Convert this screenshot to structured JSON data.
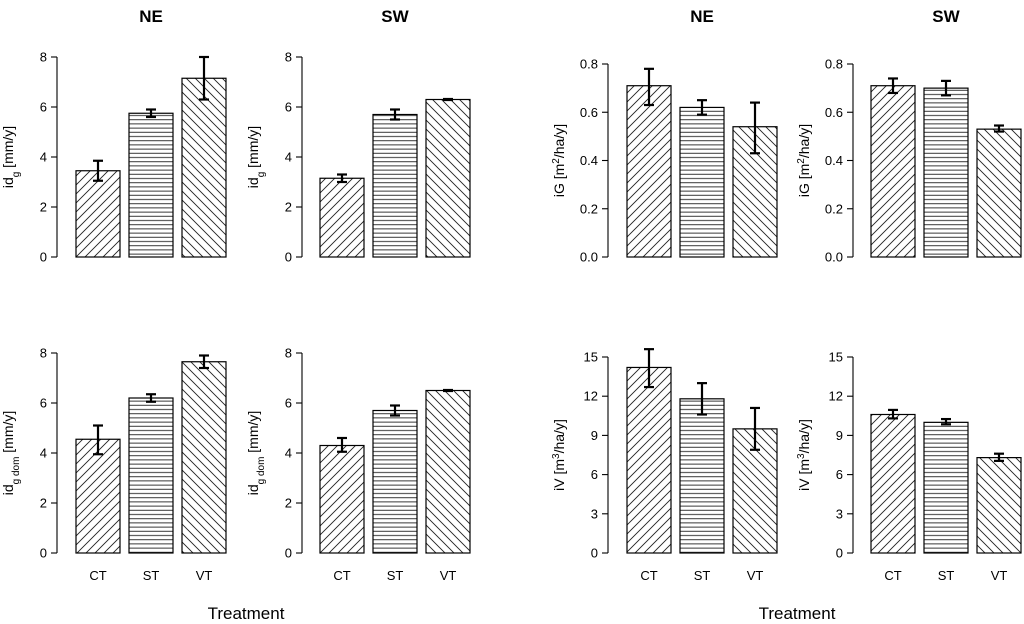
{
  "chart_data": [
    {
      "type": "bar",
      "title": "NE",
      "ylabel_parts": [
        [
          "id",
          ""
        ],
        [
          "g",
          "sub"
        ],
        [
          " [mm/y]",
          ""
        ]
      ],
      "categories": [
        "CT",
        "ST",
        "VT"
      ],
      "hatches": [
        "diag-up",
        "horizontal",
        "diag-down"
      ],
      "values": [
        3.45,
        5.75,
        7.15
      ],
      "errors": [
        [
          3.05,
          3.85
        ],
        [
          5.6,
          5.9
        ],
        [
          6.3,
          8.0
        ]
      ],
      "ylim": [
        0,
        8
      ],
      "yticks": [
        "0",
        "2",
        "4",
        "6",
        "8"
      ],
      "xlabel": ""
    },
    {
      "type": "bar",
      "title": "SW",
      "ylabel_parts": [
        [
          "id",
          ""
        ],
        [
          "g",
          "sub"
        ],
        [
          " [mm/y]",
          ""
        ]
      ],
      "categories": [
        "CT",
        "ST",
        "VT"
      ],
      "hatches": [
        "diag-up",
        "horizontal",
        "diag-down"
      ],
      "values": [
        3.15,
        5.7,
        6.3
      ],
      "errors": [
        [
          3.0,
          3.3
        ],
        [
          5.5,
          5.9
        ],
        [
          6.28,
          6.32
        ]
      ],
      "ylim": [
        0,
        8
      ],
      "yticks": [
        "0",
        "2",
        "4",
        "6",
        "8"
      ],
      "xlabel": ""
    },
    {
      "type": "bar",
      "title": "NE",
      "ylabel_parts": [
        [
          "iG [m",
          ""
        ],
        [
          "2",
          "sup"
        ],
        [
          "/ha/y]",
          ""
        ]
      ],
      "categories": [
        "CT",
        "ST",
        "VT"
      ],
      "hatches": [
        "diag-up",
        "horizontal",
        "diag-down"
      ],
      "values": [
        0.71,
        0.62,
        0.54
      ],
      "errors": [
        [
          0.63,
          0.78
        ],
        [
          0.59,
          0.65
        ],
        [
          0.43,
          0.64
        ]
      ],
      "ylim": [
        0,
        0.8
      ],
      "yticks": [
        "0.0",
        "0.2",
        "0.4",
        "0.6",
        "0.8"
      ],
      "xlabel": ""
    },
    {
      "type": "bar",
      "title": "SW",
      "ylabel_parts": [
        [
          "iG [m",
          ""
        ],
        [
          "2",
          "sup"
        ],
        [
          "/ha/y]",
          ""
        ]
      ],
      "categories": [
        "CT",
        "ST",
        "VT"
      ],
      "hatches": [
        "diag-up",
        "horizontal",
        "diag-down"
      ],
      "values": [
        0.71,
        0.7,
        0.53
      ],
      "errors": [
        [
          0.68,
          0.74
        ],
        [
          0.67,
          0.73
        ],
        [
          0.52,
          0.545
        ]
      ],
      "ylim": [
        0,
        0.8
      ],
      "yticks": [
        "0.0",
        "0.2",
        "0.4",
        "0.6",
        "0.8"
      ],
      "xlabel": ""
    },
    {
      "type": "bar",
      "title": "",
      "ylabel_parts": [
        [
          "id",
          ""
        ],
        [
          "g dom",
          "sub"
        ],
        [
          " [mm/y]",
          ""
        ]
      ],
      "categories": [
        "CT",
        "ST",
        "VT"
      ],
      "hatches": [
        "diag-up",
        "horizontal",
        "diag-down"
      ],
      "values": [
        4.55,
        6.2,
        7.65
      ],
      "errors": [
        [
          3.95,
          5.1
        ],
        [
          6.05,
          6.35
        ],
        [
          7.4,
          7.9
        ]
      ],
      "ylim": [
        0,
        8
      ],
      "yticks": [
        "0",
        "2",
        "4",
        "6",
        "8"
      ],
      "xlabel": "Treatment"
    },
    {
      "type": "bar",
      "title": "",
      "ylabel_parts": [
        [
          "id",
          ""
        ],
        [
          "g dom",
          "sub"
        ],
        [
          " [mm/y]",
          ""
        ]
      ],
      "categories": [
        "CT",
        "ST",
        "VT"
      ],
      "hatches": [
        "diag-up",
        "horizontal",
        "diag-down"
      ],
      "values": [
        4.3,
        5.7,
        6.5
      ],
      "errors": [
        [
          4.05,
          4.6
        ],
        [
          5.5,
          5.9
        ],
        [
          6.48,
          6.52
        ]
      ],
      "ylim": [
        0,
        8
      ],
      "yticks": [
        "0",
        "2",
        "4",
        "6",
        "8"
      ],
      "xlabel": ""
    },
    {
      "type": "bar",
      "title": "",
      "ylabel_parts": [
        [
          "iV [m",
          ""
        ],
        [
          "3",
          "sup"
        ],
        [
          "/ha/y]",
          ""
        ]
      ],
      "categories": [
        "CT",
        "ST",
        "VT"
      ],
      "hatches": [
        "diag-up",
        "horizontal",
        "diag-down"
      ],
      "values": [
        14.2,
        11.8,
        9.5
      ],
      "errors": [
        [
          12.7,
          15.6
        ],
        [
          10.6,
          13.0
        ],
        [
          7.9,
          11.1
        ]
      ],
      "ylim": [
        0,
        15
      ],
      "yticks": [
        "0",
        "3",
        "6",
        "9",
        "12",
        "15"
      ],
      "xlabel": "Treatment"
    },
    {
      "type": "bar",
      "title": "",
      "ylabel_parts": [
        [
          "iV [m",
          ""
        ],
        [
          "3",
          "sup"
        ],
        [
          "/ha/y]",
          ""
        ]
      ],
      "categories": [
        "CT",
        "ST",
        "VT"
      ],
      "hatches": [
        "diag-up",
        "horizontal",
        "diag-down"
      ],
      "values": [
        10.6,
        10.0,
        7.3
      ],
      "errors": [
        [
          10.3,
          10.95
        ],
        [
          9.85,
          10.25
        ],
        [
          7.05,
          7.6
        ]
      ],
      "ylim": [
        0,
        15
      ],
      "yticks": [
        "0",
        "3",
        "6",
        "9",
        "12",
        "15"
      ],
      "xlabel": ""
    }
  ]
}
